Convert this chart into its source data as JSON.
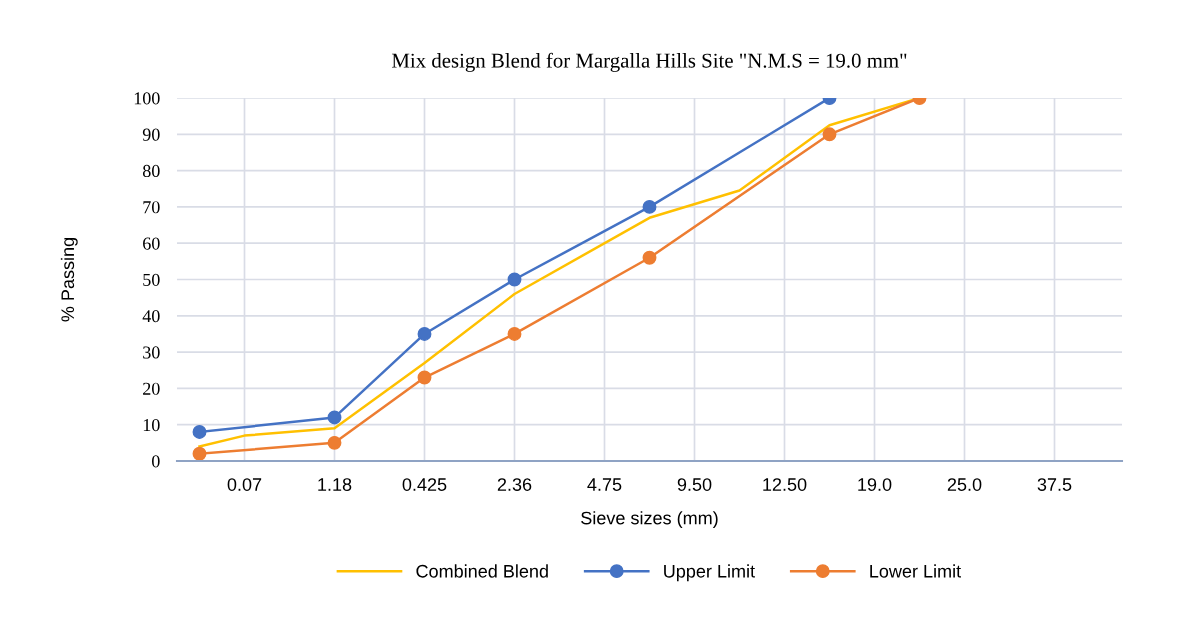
{
  "chart_data": {
    "type": "line",
    "title": "Mix design Blend for Margalla Hills Site \"N.M.S = 19.0 mm\"",
    "xlabel": "Sieve sizes (mm)",
    "ylabel": "% Passing",
    "categories": [
      null,
      "0.07",
      null,
      "1.18",
      null,
      "0.425",
      null,
      "2.36",
      null,
      "4.75",
      null,
      "9.50",
      null,
      "12.50",
      null,
      "19.0",
      null,
      "25.0",
      null,
      "37.5",
      null
    ],
    "ylim": [
      0,
      100
    ],
    "yticks": [
      0,
      10,
      20,
      30,
      40,
      50,
      60,
      70,
      80,
      90,
      100
    ],
    "grid": true,
    "legend": "bottom",
    "series": [
      {
        "name": "Combined Blend",
        "color": "#ffc000",
        "marker": "none",
        "values": [
          4,
          7,
          null,
          9,
          null,
          27,
          null,
          46,
          null,
          null,
          67,
          null,
          74.5,
          null,
          92.5,
          null,
          100,
          null,
          null,
          null,
          null
        ]
      },
      {
        "name": "Upper Limit",
        "color": "#4472c4",
        "marker": "circle",
        "values": [
          8,
          null,
          null,
          12,
          null,
          35,
          null,
          50,
          null,
          null,
          70,
          null,
          null,
          null,
          100,
          null,
          null,
          null,
          null,
          null,
          null
        ]
      },
      {
        "name": "Lower Limit",
        "color": "#ed7d31",
        "marker": "circle",
        "values": [
          2,
          null,
          null,
          5,
          null,
          23,
          null,
          35,
          null,
          null,
          56,
          null,
          null,
          null,
          90,
          null,
          100,
          null,
          null,
          null,
          null
        ]
      }
    ]
  }
}
